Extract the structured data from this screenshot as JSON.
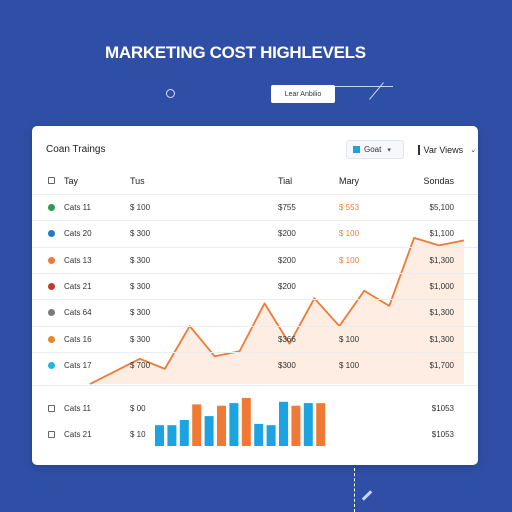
{
  "page": {
    "title": "MARKETING COST HIGHLEVELS",
    "button_label": "Lear Anbilio"
  },
  "card": {
    "title": "Coan Traings",
    "dropdown1": {
      "label": "Goat"
    },
    "dropdown2": {
      "label": "Var Views"
    },
    "headers": [
      "Tay",
      "Tus",
      "Tial",
      "Mary",
      "Sondas"
    ],
    "rows": [
      {
        "marker": "dot",
        "color": "#2e9e4a",
        "name": "Cats 11",
        "a": "$ 100",
        "b": "$755",
        "c": "$ 553",
        "c_orange": true,
        "d": "$5,100"
      },
      {
        "marker": "dot",
        "color": "#1f78d1",
        "name": "Cats 20",
        "a": "$ 300",
        "b": "$200",
        "c": "$ 100",
        "c_orange": true,
        "d": "$1,100"
      },
      {
        "marker": "dot",
        "color": "#f07a35",
        "name": "Cats 13",
        "a": "$ 300",
        "b": "$200",
        "c": "$ 100",
        "c_orange": true,
        "d": "$1,300"
      },
      {
        "marker": "dot",
        "color": "#c0392b",
        "name": "Cats 21",
        "a": "$ 300",
        "b": "$200",
        "c": "",
        "c_orange": false,
        "d": "$1,000"
      },
      {
        "marker": "dot",
        "color": "#7a7a7a",
        "name": "Cats 64",
        "a": "$ 300",
        "b": "",
        "c": "",
        "c_orange": false,
        "d": "$1,300"
      },
      {
        "marker": "dot",
        "color": "#e8862a",
        "name": "Cats 16",
        "a": "$ 300",
        "b": "$366",
        "c": "$ 100",
        "c_orange": false,
        "d": "$1,300"
      },
      {
        "marker": "dot",
        "color": "#22b5e0",
        "name": "Cats 17",
        "a": "$ 700",
        "b": "$300",
        "c": "$ 100",
        "c_orange": false,
        "d": "$1,700"
      }
    ],
    "footer_rows": [
      {
        "name": "Cats 11",
        "a": "$ 00",
        "d": "$1053"
      },
      {
        "name": "Cats 21",
        "a": "$ 10",
        "d": "$1053"
      }
    ]
  },
  "chart_data": [
    {
      "type": "area",
      "y": [
        0,
        1,
        2,
        1.2,
        4.6,
        2.2,
        2.6,
        6.4,
        3.2,
        6.8,
        4.6,
        7.4,
        6.2,
        11.6,
        11.0,
        11.4
      ]
    },
    {
      "type": "bar",
      "values": [
        3.2,
        3.2,
        4.0,
        6.4,
        4.6,
        6.2,
        6.6,
        7.4,
        3.4,
        3.2,
        6.8,
        6.2,
        6.6,
        6.6
      ],
      "colors": [
        "#1ca4e0",
        "#1ca4e0",
        "#1ca4e0",
        "#f07a35",
        "#1ca4e0",
        "#f07a35",
        "#1ca4e0",
        "#f07a35",
        "#1ca4e0",
        "#1ca4e0",
        "#1ca4e0",
        "#f07a35",
        "#1ca4e0",
        "#f07a35"
      ]
    }
  ]
}
